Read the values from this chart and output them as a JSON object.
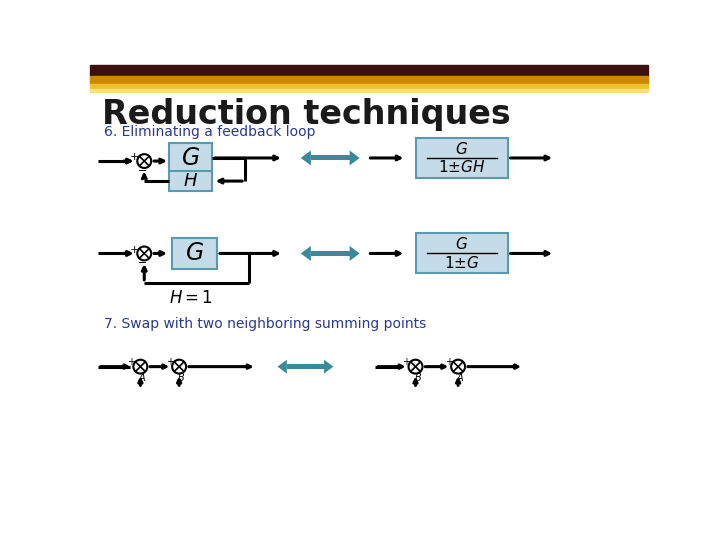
{
  "title": "Reduction techniques",
  "subtitle1": "6. Eliminating a feedback loop",
  "subtitle2": "7. Swap with two neighboring summing points",
  "title_color": "#1a1a1a",
  "header_bar_dark": "#3d1010",
  "header_bar_gold": "#cc8800",
  "header_bar_light": "#f0c030",
  "subtitle_color": "#2b3990",
  "box_fill_color": "#c5dce8",
  "box_edge_color": "#5a9ab0",
  "teal_color": "#3a8a9a",
  "line_color": "#000000",
  "bg_color": "#ffffff"
}
